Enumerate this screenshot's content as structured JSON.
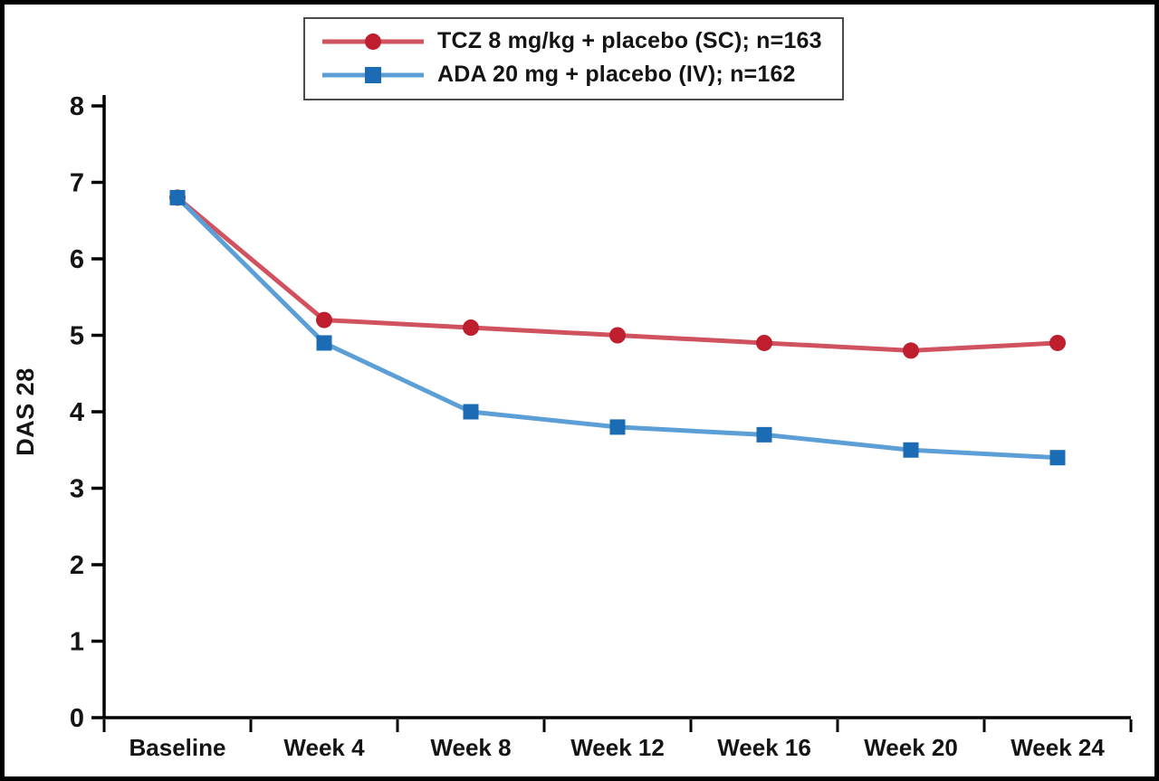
{
  "figure": {
    "background": "#ffffff",
    "border_color": "#000000",
    "axis_color": "#000000"
  },
  "chart_data": {
    "type": "line",
    "title": "",
    "xlabel": "",
    "ylabel": "DAS 28",
    "ylim": [
      0,
      8
    ],
    "yticks": [
      0,
      1,
      2,
      3,
      4,
      5,
      6,
      7,
      8
    ],
    "grid": false,
    "legend_position": "top-center",
    "categories": [
      "Baseline",
      "Week 4",
      "Week 8",
      "Week 12",
      "Week 16",
      "Week 20",
      "Week 24"
    ],
    "series": [
      {
        "name": "TCZ 8 mg/kg + placebo (SC); n=163",
        "marker": "circle",
        "marker_color": "#bf1e2e",
        "line_color": "#d0525e",
        "values": [
          6.8,
          5.2,
          5.1,
          5.0,
          4.9,
          4.8,
          4.9
        ]
      },
      {
        "name": "ADA 20 mg + placebo (IV); n=162",
        "marker": "square",
        "marker_color": "#1b6cb5",
        "line_color": "#5b9fd6",
        "values": [
          6.8,
          4.9,
          4.0,
          3.8,
          3.7,
          3.5,
          3.4
        ]
      }
    ]
  }
}
